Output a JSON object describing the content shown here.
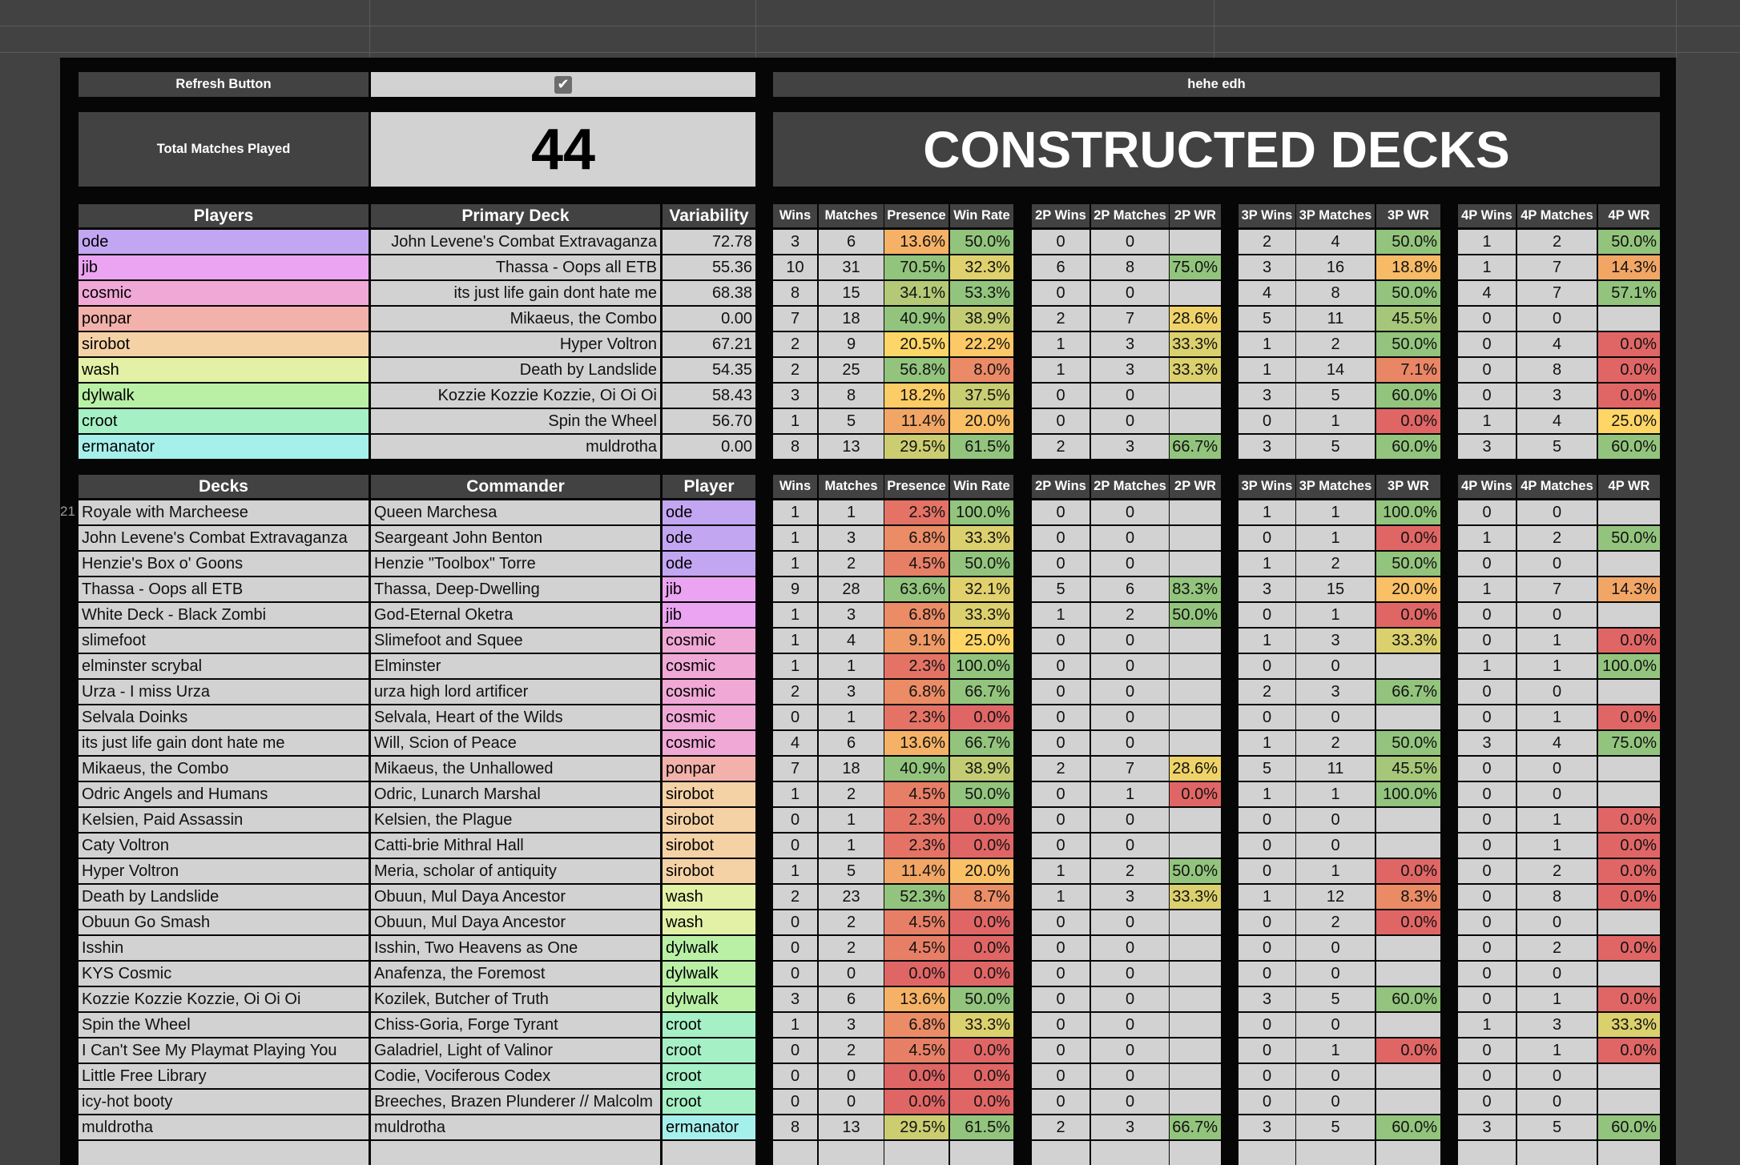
{
  "colors": {
    "players": {
      "ode": "#c3a6f2",
      "jib": "#eba4f1",
      "cosmic": "#f0a8d7",
      "ponpar": "#f2b1aa",
      "sirobot": "#f4d2a6",
      "wash": "#e3f1a6",
      "dylwalk": "#b9f0a6",
      "croot": "#a6f0c6",
      "ermanator": "#a6f0ec"
    },
    "scale_low": "#e06666",
    "scale_mid": "#ffd666",
    "scale_high": "#93c47d"
  },
  "header": {
    "refresh_label": "Refresh Button",
    "refresh_checked": true,
    "sheet_title": "hehe edh",
    "total_label": "Total Matches Played",
    "total_value": "44",
    "banner": "CONSTRUCTED DECKS"
  },
  "stat_headers": [
    "Wins",
    "Matches",
    "Presence",
    "Win Rate",
    "2P Wins",
    "2P Matches",
    "2P WR",
    "3P Wins",
    "3P Matches",
    "3P WR",
    "4P Wins",
    "4P Matches",
    "4P WR"
  ],
  "players_table": {
    "headers": [
      "Players",
      "Primary Deck",
      "Variability"
    ],
    "rows": [
      {
        "player": "ode",
        "deck": "John Levene's Combat Extravaganza",
        "var": "72.78",
        "stats": [
          "3",
          "6",
          "13.6%",
          "50.0%",
          "0",
          "0",
          "",
          "2",
          "4",
          "50.0%",
          "1",
          "2",
          "50.0%"
        ]
      },
      {
        "player": "jib",
        "deck": "Thassa - Oops all ETB",
        "var": "55.36",
        "stats": [
          "10",
          "31",
          "70.5%",
          "32.3%",
          "6",
          "8",
          "75.0%",
          "3",
          "16",
          "18.8%",
          "1",
          "7",
          "14.3%"
        ]
      },
      {
        "player": "cosmic",
        "deck": "its just life gain dont hate me",
        "var": "68.38",
        "stats": [
          "8",
          "15",
          "34.1%",
          "53.3%",
          "0",
          "0",
          "",
          "4",
          "8",
          "50.0%",
          "4",
          "7",
          "57.1%"
        ]
      },
      {
        "player": "ponpar",
        "deck": "Mikaeus, the Combo",
        "var": "0.00",
        "stats": [
          "7",
          "18",
          "40.9%",
          "38.9%",
          "2",
          "7",
          "28.6%",
          "5",
          "11",
          "45.5%",
          "0",
          "0",
          ""
        ]
      },
      {
        "player": "sirobot",
        "deck": "Hyper Voltron",
        "var": "67.21",
        "stats": [
          "2",
          "9",
          "20.5%",
          "22.2%",
          "1",
          "3",
          "33.3%",
          "1",
          "2",
          "50.0%",
          "0",
          "4",
          "0.0%"
        ]
      },
      {
        "player": "wash",
        "deck": "Death by Landslide",
        "var": "54.35",
        "stats": [
          "2",
          "25",
          "56.8%",
          "8.0%",
          "1",
          "3",
          "33.3%",
          "1",
          "14",
          "7.1%",
          "0",
          "8",
          "0.0%"
        ]
      },
      {
        "player": "dylwalk",
        "deck": "Kozzie Kozzie Kozzie, Oi Oi Oi",
        "var": "58.43",
        "stats": [
          "3",
          "8",
          "18.2%",
          "37.5%",
          "0",
          "0",
          "",
          "3",
          "5",
          "60.0%",
          "0",
          "3",
          "0.0%"
        ]
      },
      {
        "player": "croot",
        "deck": "Spin the Wheel",
        "var": "56.70",
        "stats": [
          "1",
          "5",
          "11.4%",
          "20.0%",
          "0",
          "0",
          "",
          "0",
          "1",
          "0.0%",
          "1",
          "4",
          "25.0%"
        ]
      },
      {
        "player": "ermanator",
        "deck": "muldrotha",
        "var": "0.00",
        "stats": [
          "8",
          "13",
          "29.5%",
          "61.5%",
          "2",
          "3",
          "66.7%",
          "3",
          "5",
          "60.0%",
          "3",
          "5",
          "60.0%"
        ]
      }
    ]
  },
  "decks_table": {
    "headers": [
      "Decks",
      "Commander",
      "Player"
    ],
    "row_number": "21",
    "rows": [
      {
        "deck": "Royale with Marcheese",
        "commander": "Queen Marchesa",
        "player": "ode",
        "stats": [
          "1",
          "1",
          "2.3%",
          "100.0%",
          "0",
          "0",
          "",
          "1",
          "1",
          "100.0%",
          "0",
          "0",
          ""
        ]
      },
      {
        "deck": "John Levene's Combat Extravaganza",
        "commander": "Seargeant John Benton",
        "player": "ode",
        "stats": [
          "1",
          "3",
          "6.8%",
          "33.3%",
          "0",
          "0",
          "",
          "0",
          "1",
          "0.0%",
          "1",
          "2",
          "50.0%"
        ]
      },
      {
        "deck": "Henzie's Box o' Goons",
        "commander": "Henzie \"Toolbox\" Torre",
        "player": "ode",
        "stats": [
          "1",
          "2",
          "4.5%",
          "50.0%",
          "0",
          "0",
          "",
          "1",
          "2",
          "50.0%",
          "0",
          "0",
          ""
        ]
      },
      {
        "deck": "Thassa - Oops all ETB",
        "commander": "Thassa, Deep-Dwelling",
        "player": "jib",
        "stats": [
          "9",
          "28",
          "63.6%",
          "32.1%",
          "5",
          "6",
          "83.3%",
          "3",
          "15",
          "20.0%",
          "1",
          "7",
          "14.3%"
        ]
      },
      {
        "deck": "White Deck - Black Zombi",
        "commander": "God-Eternal Oketra",
        "player": "jib",
        "stats": [
          "1",
          "3",
          "6.8%",
          "33.3%",
          "1",
          "2",
          "50.0%",
          "0",
          "1",
          "0.0%",
          "0",
          "0",
          ""
        ]
      },
      {
        "deck": "slimefoot",
        "commander": "Slimefoot and Squee",
        "player": "cosmic",
        "stats": [
          "1",
          "4",
          "9.1%",
          "25.0%",
          "0",
          "0",
          "",
          "1",
          "3",
          "33.3%",
          "0",
          "1",
          "0.0%"
        ]
      },
      {
        "deck": "elminster scrybal",
        "commander": "Elminster",
        "player": "cosmic",
        "stats": [
          "1",
          "1",
          "2.3%",
          "100.0%",
          "0",
          "0",
          "",
          "0",
          "0",
          "",
          "1",
          "1",
          "100.0%"
        ]
      },
      {
        "deck": "Urza - I miss Urza",
        "commander": "urza high lord artificer",
        "player": "cosmic",
        "stats": [
          "2",
          "3",
          "6.8%",
          "66.7%",
          "0",
          "0",
          "",
          "2",
          "3",
          "66.7%",
          "0",
          "0",
          ""
        ]
      },
      {
        "deck": "Selvala Doinks",
        "commander": "Selvala, Heart of the Wilds",
        "player": "cosmic",
        "stats": [
          "0",
          "1",
          "2.3%",
          "0.0%",
          "0",
          "0",
          "",
          "0",
          "0",
          "",
          "0",
          "1",
          "0.0%"
        ]
      },
      {
        "deck": "its just life gain dont hate me",
        "commander": "Will, Scion of Peace",
        "player": "cosmic",
        "stats": [
          "4",
          "6",
          "13.6%",
          "66.7%",
          "0",
          "0",
          "",
          "1",
          "2",
          "50.0%",
          "3",
          "4",
          "75.0%"
        ]
      },
      {
        "deck": "Mikaeus, the Combo",
        "commander": "Mikaeus, the Unhallowed",
        "player": "ponpar",
        "stats": [
          "7",
          "18",
          "40.9%",
          "38.9%",
          "2",
          "7",
          "28.6%",
          "5",
          "11",
          "45.5%",
          "0",
          "0",
          ""
        ]
      },
      {
        "deck": "Odric Angels and Humans",
        "commander": "Odric, Lunarch Marshal",
        "player": "sirobot",
        "stats": [
          "1",
          "2",
          "4.5%",
          "50.0%",
          "0",
          "1",
          "0.0%",
          "1",
          "1",
          "100.0%",
          "0",
          "0",
          ""
        ]
      },
      {
        "deck": "Kelsien, Paid Assassin",
        "commander": "Kelsien, the Plague",
        "player": "sirobot",
        "stats": [
          "0",
          "1",
          "2.3%",
          "0.0%",
          "0",
          "0",
          "",
          "0",
          "0",
          "",
          "0",
          "1",
          "0.0%"
        ]
      },
      {
        "deck": "Caty Voltron",
        "commander": "Catti-brie Mithral Hall",
        "player": "sirobot",
        "stats": [
          "0",
          "1",
          "2.3%",
          "0.0%",
          "0",
          "0",
          "",
          "0",
          "0",
          "",
          "0",
          "1",
          "0.0%"
        ]
      },
      {
        "deck": "Hyper Voltron",
        "commander": "Meria, scholar of antiquity",
        "player": "sirobot",
        "stats": [
          "1",
          "5",
          "11.4%",
          "20.0%",
          "1",
          "2",
          "50.0%",
          "0",
          "1",
          "0.0%",
          "0",
          "2",
          "0.0%"
        ]
      },
      {
        "deck": "Death by Landslide",
        "commander": "Obuun, Mul Daya Ancestor",
        "player": "wash",
        "stats": [
          "2",
          "23",
          "52.3%",
          "8.7%",
          "1",
          "3",
          "33.3%",
          "1",
          "12",
          "8.3%",
          "0",
          "8",
          "0.0%"
        ]
      },
      {
        "deck": "Obuun Go Smash",
        "commander": "Obuun, Mul Daya Ancestor",
        "player": "wash",
        "stats": [
          "0",
          "2",
          "4.5%",
          "0.0%",
          "0",
          "0",
          "",
          "0",
          "2",
          "0.0%",
          "0",
          "0",
          ""
        ]
      },
      {
        "deck": "Isshin",
        "commander": "Isshin, Two Heavens as One",
        "player": "dylwalk",
        "stats": [
          "0",
          "2",
          "4.5%",
          "0.0%",
          "0",
          "0",
          "",
          "0",
          "0",
          "",
          "0",
          "2",
          "0.0%"
        ]
      },
      {
        "deck": "KYS Cosmic",
        "commander": "Anafenza, the Foremost",
        "player": "dylwalk",
        "stats": [
          "0",
          "0",
          "0.0%",
          "0.0%",
          "0",
          "0",
          "",
          "0",
          "0",
          "",
          "0",
          "0",
          ""
        ]
      },
      {
        "deck": "Kozzie Kozzie Kozzie, Oi Oi Oi",
        "commander": "Kozilek, Butcher of Truth",
        "player": "dylwalk",
        "stats": [
          "3",
          "6",
          "13.6%",
          "50.0%",
          "0",
          "0",
          "",
          "3",
          "5",
          "60.0%",
          "0",
          "1",
          "0.0%"
        ]
      },
      {
        "deck": "Spin the Wheel",
        "commander": "Chiss-Goria, Forge Tyrant",
        "player": "croot",
        "stats": [
          "1",
          "3",
          "6.8%",
          "33.3%",
          "0",
          "0",
          "",
          "0",
          "0",
          "",
          "1",
          "3",
          "33.3%"
        ]
      },
      {
        "deck": "I Can't See My Playmat Playing You",
        "commander": "Galadriel, Light of Valinor",
        "player": "croot",
        "stats": [
          "0",
          "2",
          "4.5%",
          "0.0%",
          "0",
          "0",
          "",
          "0",
          "1",
          "0.0%",
          "0",
          "1",
          "0.0%"
        ]
      },
      {
        "deck": "Little Free Library",
        "commander": "Codie, Vociferous Codex",
        "player": "croot",
        "stats": [
          "0",
          "0",
          "0.0%",
          "0.0%",
          "0",
          "0",
          "",
          "0",
          "0",
          "",
          "0",
          "0",
          ""
        ]
      },
      {
        "deck": "icy-hot booty",
        "commander": "Breeches, Brazen Plunderer // Malcolm",
        "player": "croot",
        "stats": [
          "0",
          "0",
          "0.0%",
          "0.0%",
          "0",
          "0",
          "",
          "0",
          "0",
          "",
          "0",
          "0",
          ""
        ]
      },
      {
        "deck": "muldrotha",
        "commander": "muldrotha",
        "player": "ermanator",
        "stats": [
          "8",
          "13",
          "29.5%",
          "61.5%",
          "2",
          "3",
          "66.7%",
          "3",
          "5",
          "60.0%",
          "3",
          "5",
          "60.0%"
        ]
      },
      {
        "deck": "",
        "commander": "",
        "player": "",
        "stats": [
          "",
          "",
          "",
          "",
          "",
          "",
          "",
          "",
          "",
          "",
          "",
          "",
          ""
        ]
      }
    ]
  }
}
